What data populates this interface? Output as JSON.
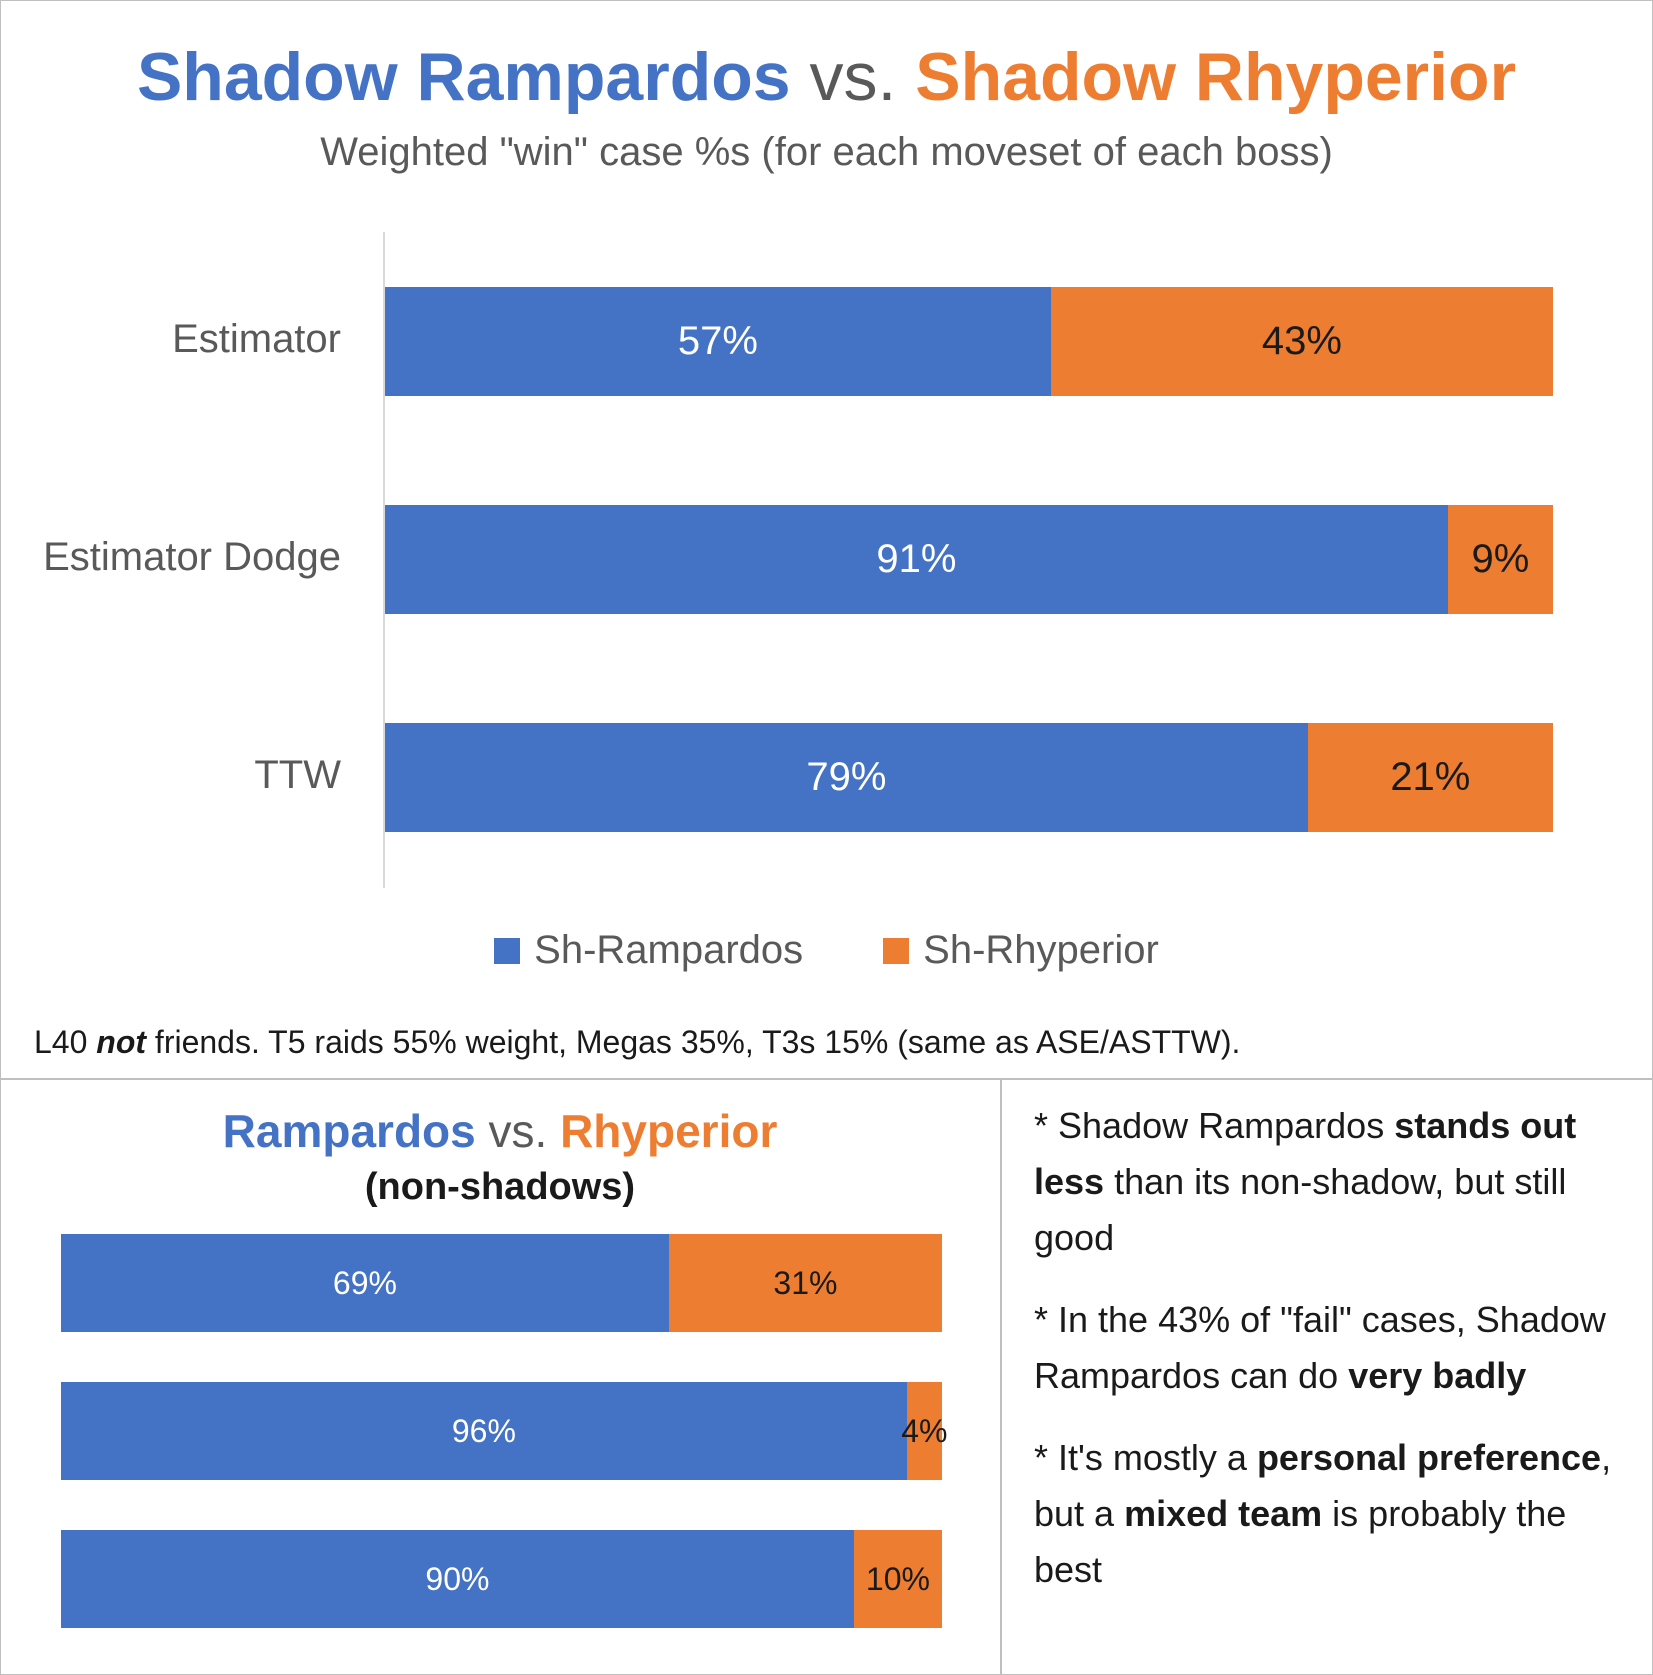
{
  "title": {
    "part1": "Shadow Rampardos",
    "mid": " vs. ",
    "part2": "Shadow Rhyperior",
    "subtitle": "Weighted \"win\" case %s (for each moveset of each boss)"
  },
  "colors": {
    "blue": "#4472c4",
    "orange": "#ed7d31"
  },
  "chart_data": [
    {
      "type": "bar",
      "orientation": "horizontal",
      "stacked": "100%",
      "categories": [
        "Estimator",
        "Estimator Dodge",
        "TTW"
      ],
      "series": [
        {
          "name": "Sh-Rampardos",
          "color": "#4472c4",
          "values": [
            57,
            91,
            79
          ],
          "labels": [
            "57%",
            "91%",
            "79%"
          ]
        },
        {
          "name": "Sh-Rhyperior",
          "color": "#ed7d31",
          "values": [
            43,
            9,
            21
          ],
          "labels": [
            "43%",
            "9%",
            "21%"
          ]
        }
      ],
      "legend": "bottom",
      "grid": false
    },
    {
      "type": "bar",
      "orientation": "horizontal",
      "stacked": "100%",
      "title_part1": "Rampardos",
      "title_mid": " vs. ",
      "title_part2": "Rhyperior",
      "subtitle": "(non-shadows)",
      "categories": [
        "",
        "",
        ""
      ],
      "series": [
        {
          "color": "#4472c4",
          "values": [
            69,
            96,
            90
          ],
          "labels": [
            "69%",
            "96%",
            "90%"
          ]
        },
        {
          "color": "#ed7d31",
          "values": [
            31,
            4,
            10
          ],
          "labels": [
            "31%",
            "4%",
            "10%"
          ]
        }
      ],
      "grid": false
    }
  ],
  "footnote": {
    "pre": "L40 ",
    "em": "not",
    "post": " friends. T5 raids 55% weight, Megas 35%, T3s 15% (same as ASE/ASTTW)."
  },
  "notes": [
    {
      "parts": [
        {
          "t": "* Shadow Rampardos ",
          "b": false
        },
        {
          "t": "stands out less",
          "b": true
        },
        {
          "t": " than its non-shadow, but still good",
          "b": false
        }
      ]
    },
    {
      "parts": [
        {
          "t": "* In the 43% of \"fail\" cases, Shadow Rampardos can do ",
          "b": false
        },
        {
          "t": "very badly",
          "b": true
        }
      ]
    },
    {
      "parts": [
        {
          "t": "* It's mostly a ",
          "b": false
        },
        {
          "t": "personal preference",
          "b": true
        },
        {
          "t": ", but a ",
          "b": false
        },
        {
          "t": "mixed team",
          "b": true
        },
        {
          "t": " is probably the best",
          "b": false
        }
      ]
    }
  ]
}
